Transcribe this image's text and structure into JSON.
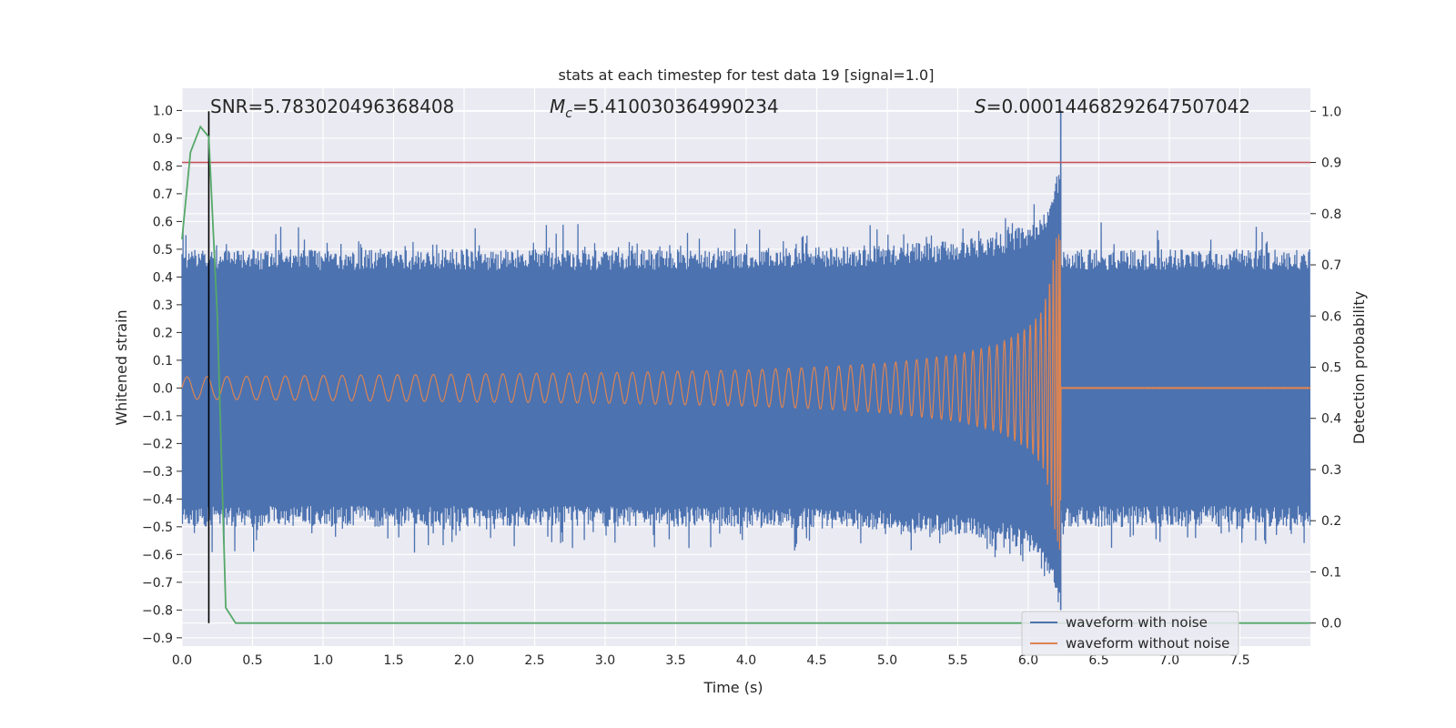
{
  "chart_data": {
    "type": "line",
    "title": "stats at each timestep for test data 19 [signal=1.0]",
    "xlabel": "Time (s)",
    "ylabel": "Whitened strain",
    "y2label": "Detection probability",
    "xlim": [
      0.0,
      8.0
    ],
    "ylim": [
      -0.93,
      1.08
    ],
    "y2lim": [
      -0.045,
      1.045
    ],
    "x_ticks": [
      "0.0",
      "0.5",
      "1.0",
      "1.5",
      "2.0",
      "2.5",
      "3.0",
      "3.5",
      "4.0",
      "4.5",
      "5.0",
      "5.5",
      "6.0",
      "6.5",
      "7.0",
      "7.5"
    ],
    "y_ticks": [
      "1.0",
      "0.9",
      "0.8",
      "0.7",
      "0.6",
      "0.5",
      "0.4",
      "0.3",
      "0.2",
      "0.1",
      "0.0",
      "−0.1",
      "−0.2",
      "−0.3",
      "−0.4",
      "−0.5",
      "−0.6",
      "−0.7",
      "−0.8",
      "−0.9"
    ],
    "y2_ticks": [
      "1.0",
      "0.9",
      "0.8",
      "0.7",
      "0.6",
      "0.5",
      "0.4",
      "0.3",
      "0.2",
      "0.1",
      "0.0"
    ],
    "grid": true,
    "annotations": {
      "snr": "SNR=5.783020496368408",
      "mc_symbol": "M",
      "mc_sub": "c",
      "mc_value": "=5.410030364990234",
      "s_symbol": "S",
      "s_value": "=0.00014468292647507042"
    },
    "legend": {
      "placement": "lower-right",
      "entries": [
        "waveform with noise",
        "waveform without noise"
      ]
    },
    "colors": {
      "noisy": "#4c72b0",
      "clean": "#dd8452",
      "probability": "#55a868",
      "threshold": "#c44e52",
      "marker": "#000000",
      "axes_bg": "#eaeaf2"
    },
    "series": [
      {
        "name": "waveform with noise",
        "noise_envelope": 0.5,
        "peak_time": 6.23,
        "peak_value": 1.0,
        "end_time": 8.0
      },
      {
        "name": "waveform without noise",
        "envelope": {
          "t": [
            0.0,
            1.0,
            2.0,
            3.0,
            4.0,
            4.5,
            5.0,
            5.5,
            5.8,
            6.0,
            6.1,
            6.15,
            6.2,
            6.23
          ],
          "amp": [
            0.04,
            0.045,
            0.05,
            0.055,
            0.065,
            0.075,
            0.09,
            0.12,
            0.16,
            0.22,
            0.28,
            0.38,
            0.55,
            0.6
          ]
        },
        "merger_time": 6.23,
        "post_merger_amp": 0.002
      },
      {
        "name": "detection probability",
        "axis": "right",
        "x": [
          0.0,
          0.06,
          0.13,
          0.19,
          0.25,
          0.31,
          0.38,
          0.45,
          8.0
        ],
        "y": [
          0.75,
          0.92,
          0.97,
          0.95,
          0.6,
          0.03,
          0.0,
          0.0,
          0.0
        ]
      }
    ],
    "threshold_probability": 0.9,
    "marker_time": 0.19
  }
}
